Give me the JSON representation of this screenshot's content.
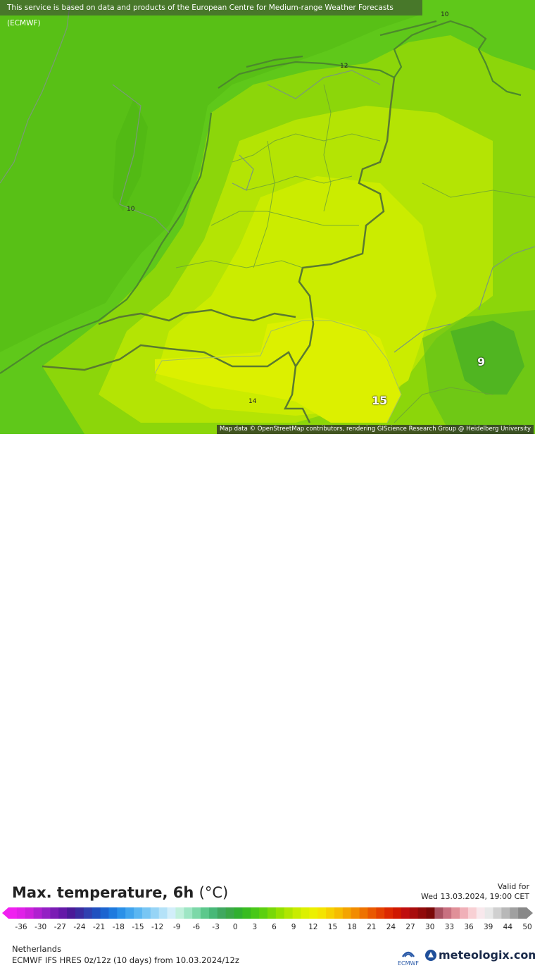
{
  "map": {
    "notice": "This service is based on data and products of the European Centre for Medium-range Weather Forecasts (ECMWF)",
    "attribution": "Map data © OpenStreetMap contributors, rendering GIScience Research Group @ Heidelberg University",
    "contour_labels": [
      "10",
      "12",
      "10",
      "14"
    ],
    "big_labels": [
      "9",
      "15"
    ]
  },
  "footer": {
    "title": "Max. temperature, 6h",
    "unit": "(°C)",
    "valid_label": "Valid for",
    "valid_time": "Wed 13.03.2024, 19:00 CET",
    "region": "Netherlands",
    "model": "ECMWF IFS HRES 0z/12z (10 days)  from  10.03.2024/12z",
    "ecmwf_label": "ECMWF",
    "brand": "meteologix.com"
  },
  "scale": {
    "ticks": [
      "-36",
      "-30",
      "-27",
      "-24",
      "-21",
      "-18",
      "-15",
      "-12",
      "-9",
      "-6",
      "-3",
      "0",
      "3",
      "6",
      "9",
      "12",
      "15",
      "18",
      "21",
      "24",
      "27",
      "30",
      "33",
      "36",
      "39",
      "44",
      "50"
    ],
    "colors": [
      "#f020f0",
      "#e020e8",
      "#cc20dc",
      "#b020d0",
      "#9420c4",
      "#7a1cb4",
      "#6418a8",
      "#4a1a98",
      "#3a2ca0",
      "#3040b0",
      "#2050c0",
      "#1c64d0",
      "#1e7ade",
      "#2a90e8",
      "#40a4ee",
      "#5ab6f2",
      "#78c6f4",
      "#96d4f6",
      "#b4e2f8",
      "#d2eefa",
      "#c0f0dc",
      "#9ee6c4",
      "#7cd8a8",
      "#5cc88c",
      "#48b878",
      "#40a860",
      "#3aa848",
      "#30b030",
      "#38bc20",
      "#48c818",
      "#5cd010",
      "#78d808",
      "#94e000",
      "#b0e600",
      "#c8ec00",
      "#dcf000",
      "#ecf000",
      "#f4e400",
      "#f6d000",
      "#f6bc00",
      "#f4a400",
      "#f28c00",
      "#ee7200",
      "#ea5800",
      "#e44000",
      "#dc2800",
      "#d01800",
      "#c00e0e",
      "#a80c0c",
      "#900a0a",
      "#7a0808",
      "#a85060",
      "#c87080",
      "#e09098",
      "#f0b0b8",
      "#f8d0d4",
      "#f8e8ec",
      "#e8e8e8",
      "#d0d0d0",
      "#b8b8b8",
      "#a0a0a0",
      "#888888"
    ]
  }
}
